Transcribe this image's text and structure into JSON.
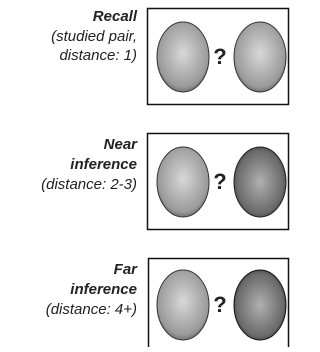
{
  "panels": [
    {
      "title": [
        "Recall"
      ],
      "detail": [
        "(studied pair,",
        "distance: 1)"
      ],
      "symbol": "?"
    },
    {
      "title": [
        "Near",
        "inference"
      ],
      "detail": [
        "(distance: 2-3)"
      ],
      "symbol": "?"
    },
    {
      "title": [
        "Far",
        "inference"
      ],
      "detail": [
        "(distance: 4+)"
      ],
      "symbol": "?"
    }
  ]
}
